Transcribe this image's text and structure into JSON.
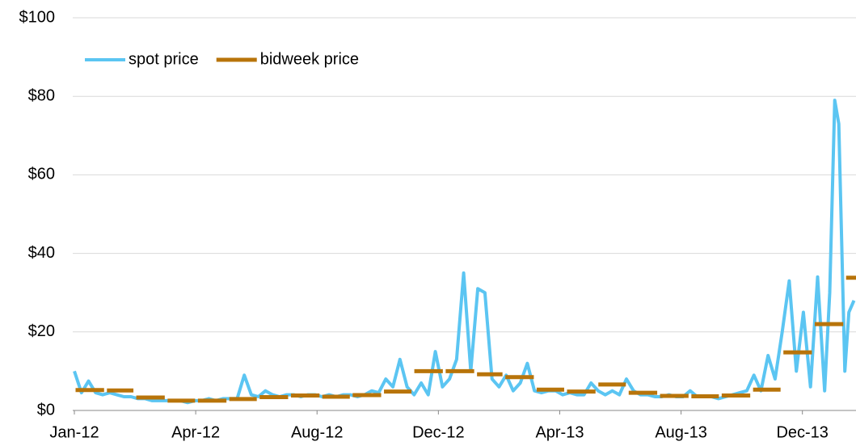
{
  "chart_data": {
    "type": "line",
    "xlim": [
      0,
      773
    ],
    "xticks": [
      {
        "value": 0,
        "label": "Jan-12"
      },
      {
        "value": 120,
        "label": "Apr-12"
      },
      {
        "value": 240,
        "label": "Aug-12"
      },
      {
        "value": 360,
        "label": "Dec-12"
      },
      {
        "value": 480,
        "label": "Apr-13"
      },
      {
        "value": 600,
        "label": "Aug-13"
      },
      {
        "value": 720,
        "label": "Dec-13"
      }
    ],
    "ylim": [
      0,
      100
    ],
    "yticks": [
      {
        "value": 0,
        "label": "$0"
      },
      {
        "value": 20,
        "label": "$20"
      },
      {
        "value": 40,
        "label": "$40"
      },
      {
        "value": 60,
        "label": "$60"
      },
      {
        "value": 80,
        "label": "$80"
      },
      {
        "value": 100,
        "label": "$100"
      }
    ],
    "grid": true,
    "legend": "top-left",
    "series": [
      {
        "name": "spot price",
        "color": "#5bc5f2",
        "style": "line",
        "x": [
          0,
          7,
          14,
          21,
          28,
          35,
          42,
          49,
          56,
          63,
          70,
          77,
          84,
          91,
          98,
          105,
          112,
          119,
          126,
          133,
          140,
          147,
          154,
          161,
          168,
          175,
          182,
          189,
          196,
          203,
          210,
          217,
          224,
          231,
          238,
          245,
          252,
          259,
          266,
          273,
          280,
          287,
          294,
          301,
          308,
          315,
          322,
          329,
          336,
          343,
          350,
          357,
          364,
          371,
          378,
          385,
          392,
          399,
          406,
          413,
          420,
          427,
          434,
          441,
          448,
          455,
          462,
          469,
          476,
          483,
          490,
          497,
          504,
          511,
          518,
          525,
          532,
          539,
          546,
          553,
          560,
          567,
          574,
          581,
          588,
          595,
          602,
          609,
          616,
          623,
          630,
          637,
          644,
          651,
          658,
          665,
          672,
          679,
          686,
          693,
          700,
          707,
          714,
          721,
          728,
          735,
          742,
          747,
          752,
          756,
          762,
          766,
          771
        ],
        "values": [
          10,
          4.5,
          7.5,
          4.5,
          4,
          4.5,
          4,
          3.5,
          3.5,
          3,
          3,
          2.5,
          2.5,
          2.5,
          2.5,
          2.5,
          2,
          2.5,
          2.5,
          3,
          2.5,
          3,
          3,
          3,
          9,
          4,
          3.5,
          5,
          4,
          3.5,
          4,
          4,
          3.5,
          4,
          4,
          3.5,
          4,
          3.5,
          4,
          4,
          3.5,
          4,
          5,
          4.5,
          8,
          6,
          13,
          6,
          4,
          7,
          4,
          15,
          6,
          8,
          13,
          35,
          10,
          31,
          30,
          8,
          6,
          9,
          5,
          7,
          12,
          5,
          4.5,
          5,
          5,
          4,
          4.5,
          4,
          4,
          7,
          5,
          4,
          5,
          4,
          8,
          5,
          4,
          4,
          3.5,
          3.5,
          4,
          3.5,
          3.5,
          5,
          3.5,
          3.5,
          3.5,
          3,
          3.5,
          4,
          4.5,
          5,
          9,
          5,
          14,
          8,
          20,
          33,
          10,
          25,
          6,
          34,
          5,
          30,
          79,
          73,
          10,
          25,
          28
        ]
      },
      {
        "name": "bidweek price",
        "color": "#b8740a",
        "style": "step",
        "x": [
          0,
          31,
          60,
          91,
          121,
          152,
          182,
          213,
          244,
          274,
          305,
          335,
          366,
          397,
          425,
          456,
          486,
          517,
          547,
          578,
          609,
          639,
          670,
          700,
          731,
          762
        ],
        "values": [
          5.2,
          5.1,
          3.3,
          2.5,
          2.5,
          2.9,
          3.4,
          3.8,
          3.5,
          3.9,
          4.8,
          10,
          10,
          9.2,
          8.5,
          5.3,
          4.8,
          6.6,
          4.5,
          3.7,
          3.6,
          3.8,
          5.3,
          14.8,
          22,
          33.8
        ]
      }
    ]
  }
}
